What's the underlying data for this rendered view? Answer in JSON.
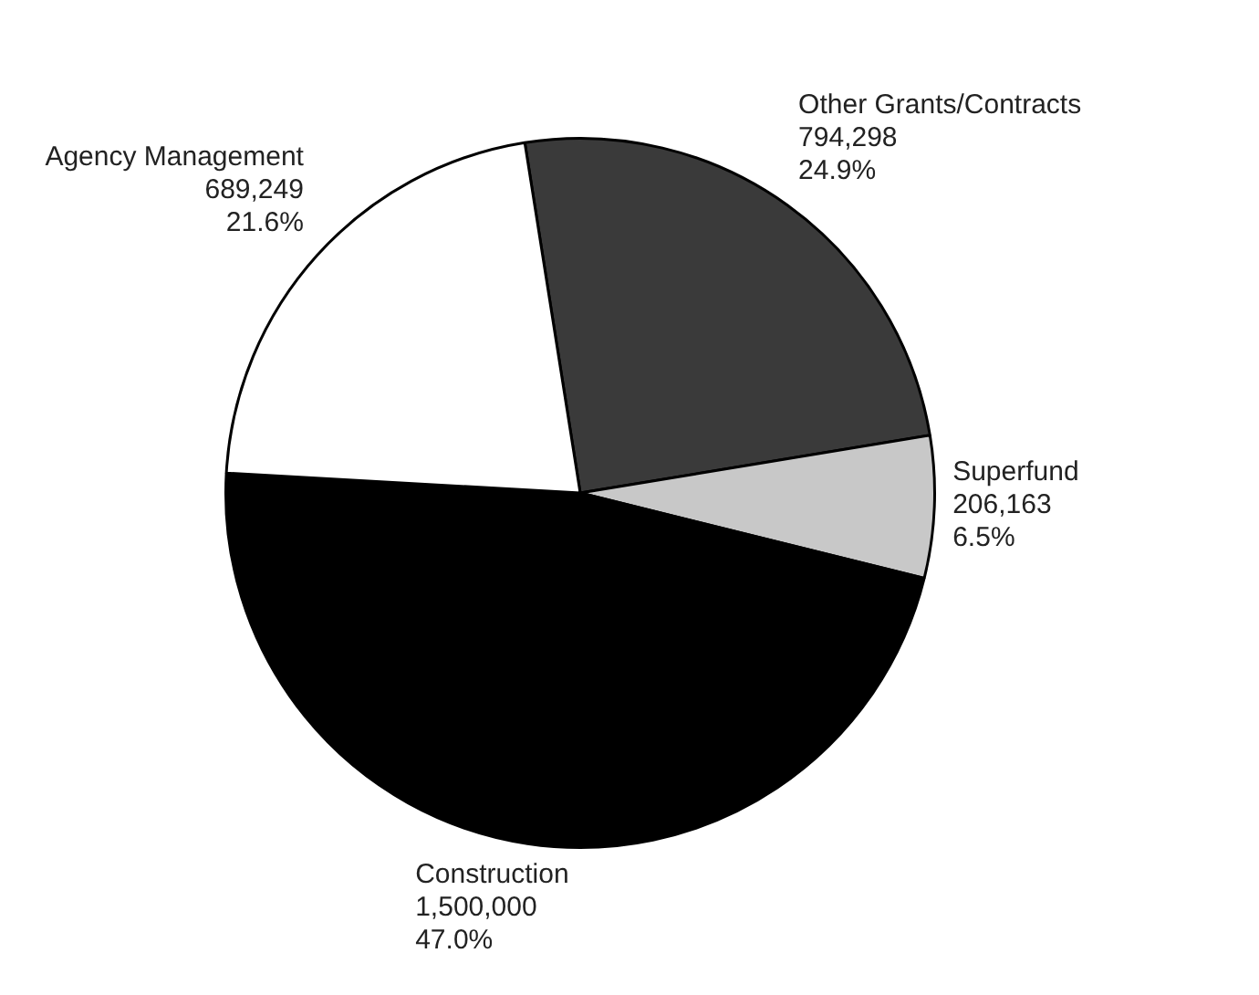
{
  "chart_data": {
    "type": "pie",
    "categories": [
      "Other Grants/Contracts",
      "Superfund",
      "Construction",
      "Agency Management"
    ],
    "values": [
      794298,
      206163,
      1500000,
      689249
    ],
    "value_labels": [
      "794,298\n24.9%",
      "206,163\n6.5%",
      "1,500,000\n47.0%",
      "689,249\n21.6%"
    ],
    "colors": [
      "#3a3a3a",
      "#c8c8c8",
      "#000000",
      "#ffffff"
    ],
    "legend": false
  }
}
